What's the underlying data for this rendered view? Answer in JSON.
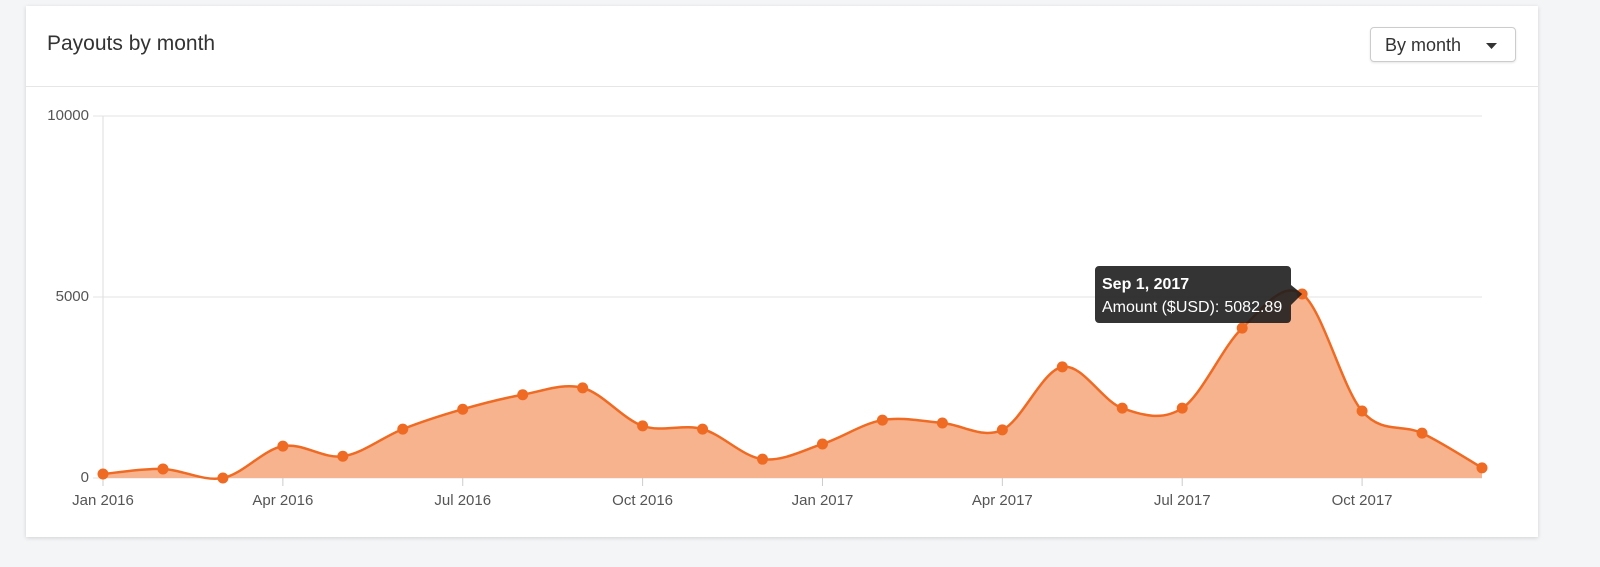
{
  "header": {
    "title": "Payouts by month",
    "dropdown": "By month"
  },
  "chart_data": {
    "type": "area",
    "categories": [
      "Jan 2016",
      null,
      null,
      "Apr 2016",
      null,
      null,
      "Jul 2016",
      null,
      null,
      "Oct 2016",
      null,
      null,
      "Jan 2017",
      null,
      null,
      "Apr 2017",
      null,
      null,
      "Jul 2017",
      null,
      null,
      "Oct 2017",
      null,
      null
    ],
    "series": [
      {
        "color": "#ef6a22",
        "values": [
          110,
          250,
          0,
          880,
          600,
          1350,
          1900,
          2300,
          2490,
          1440,
          1350,
          520,
          940,
          1600,
          1520,
          1330,
          3070,
          1930,
          1930,
          4140,
          5082.89,
          1850,
          1240,
          280
        ]
      }
    ],
    "area_color": "#f7b38e",
    "ylim": [
      0,
      10000
    ],
    "yticks": [
      0,
      5000,
      10000
    ],
    "grid": true,
    "tooltip": {
      "title": "Sep 1, 2017",
      "label": "Amount ($USD):",
      "point": 20
    }
  }
}
